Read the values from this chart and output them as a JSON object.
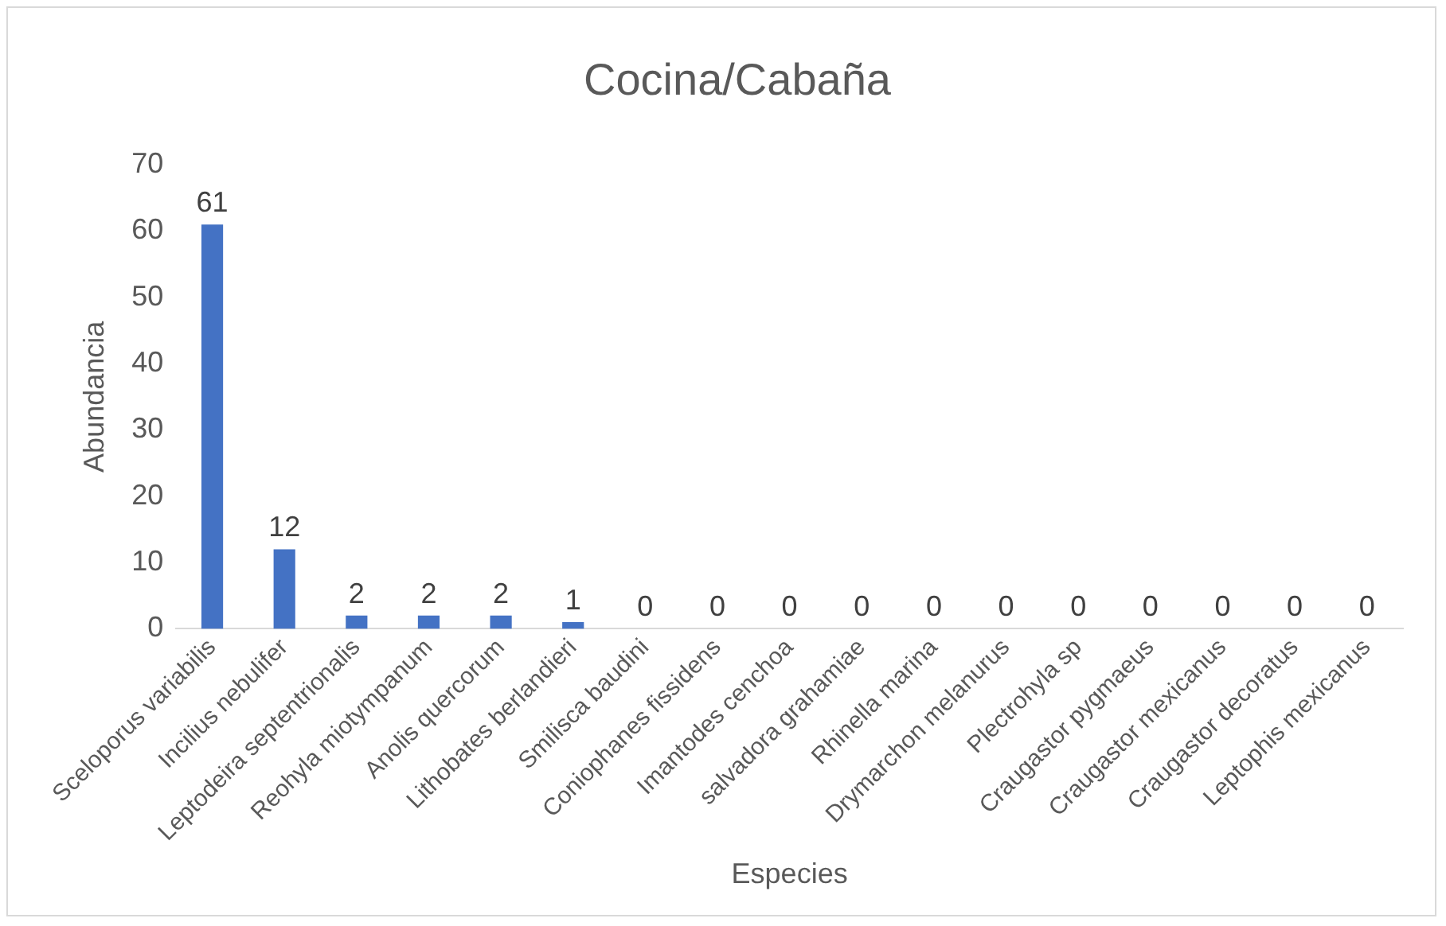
{
  "chart_data": {
    "type": "bar",
    "title": "Cocina/Cabaña",
    "xlabel": "Especies",
    "ylabel": "Abundancia",
    "categories": [
      "Sceloporus variabilis",
      "Incilius nebulifer",
      "Leptodeira septentrionalis",
      "Reohyla miotympanum",
      "Anolis quercorum",
      "Lithobates berlandieri",
      "Smilisca baudini",
      "Coniophanes fissidens",
      "Imantodes cenchoa",
      "salvadora grahamiae",
      "Rhinella marina",
      "Drymarchon melanurus",
      "Plectrohyla sp",
      "Craugastor pygmaeus",
      "Craugastor mexicanus",
      "Craugastor decoratus",
      "Leptophis mexicanus"
    ],
    "values": [
      61,
      12,
      2,
      2,
      2,
      1,
      0,
      0,
      0,
      0,
      0,
      0,
      0,
      0,
      0,
      0,
      0
    ],
    "color": "#4472c4",
    "ylim": [
      0,
      70
    ],
    "yticks": [
      0,
      10,
      20,
      30,
      40,
      50,
      60,
      70
    ],
    "grid": false,
    "legend": false,
    "data_labels": true
  }
}
